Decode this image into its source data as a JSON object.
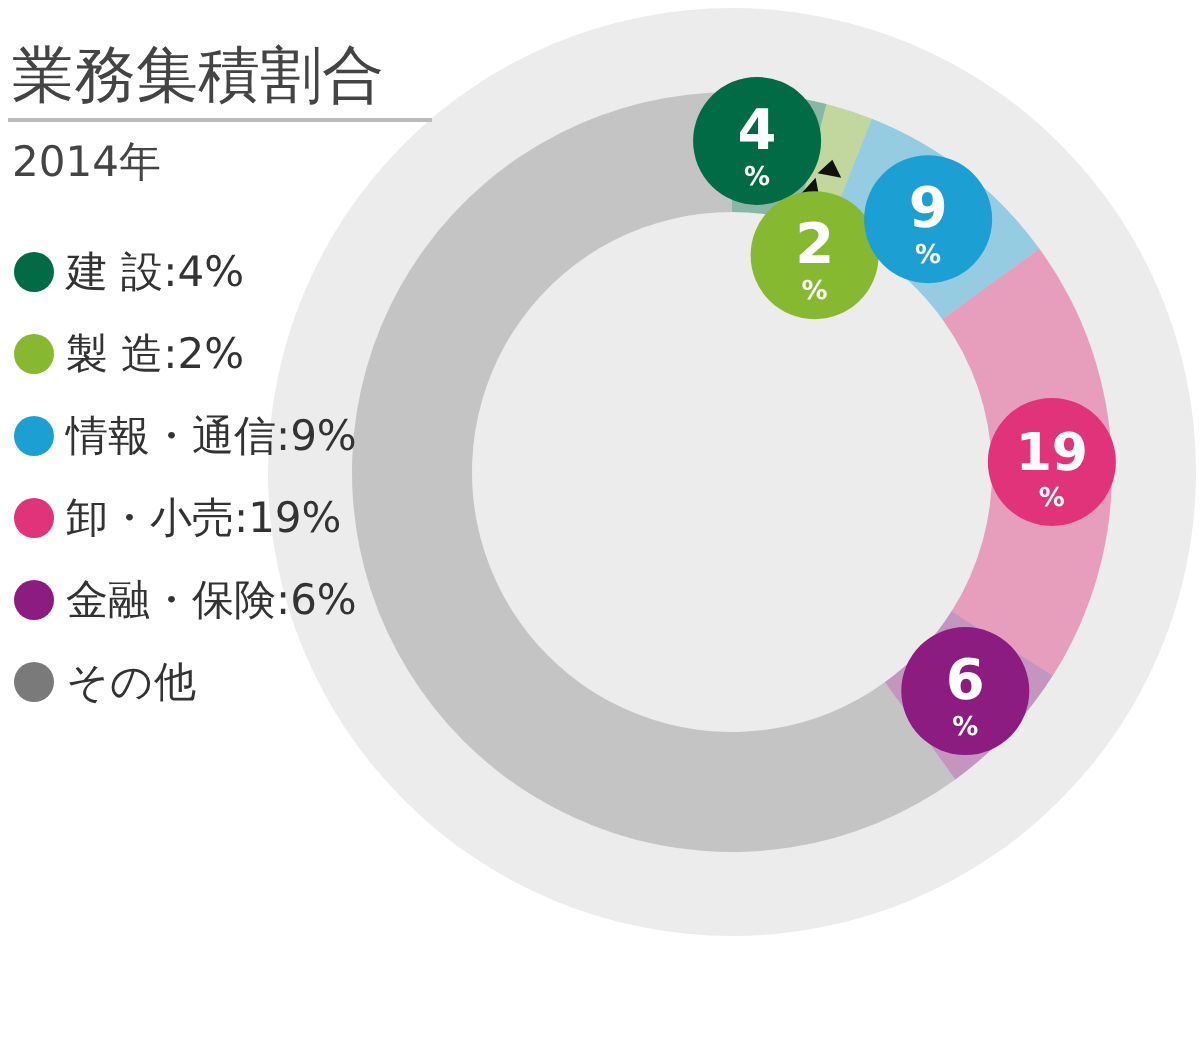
{
  "chart_data": {
    "type": "donut",
    "title": "業務集積割合",
    "subtitle": "2014年",
    "categories": [
      "建 設:4%",
      "製 造:2%",
      "情報・通信:9%",
      "卸・小売:19%",
      "金融・保険:6%",
      "その他"
    ],
    "values": [
      4,
      2,
      9,
      19,
      6,
      60
    ],
    "value_labels": [
      "4$_{%}$",
      "2$_{%}$",
      "9$_{%}$",
      "19$_{%}$",
      "6$_{%}$",
      null
    ],
    "colors": [
      "#006b45",
      "#86b930",
      "#1ca0d4",
      "#e0337a",
      "#8c1c80",
      "#7a7a7a"
    ],
    "legend": "left"
  }
}
